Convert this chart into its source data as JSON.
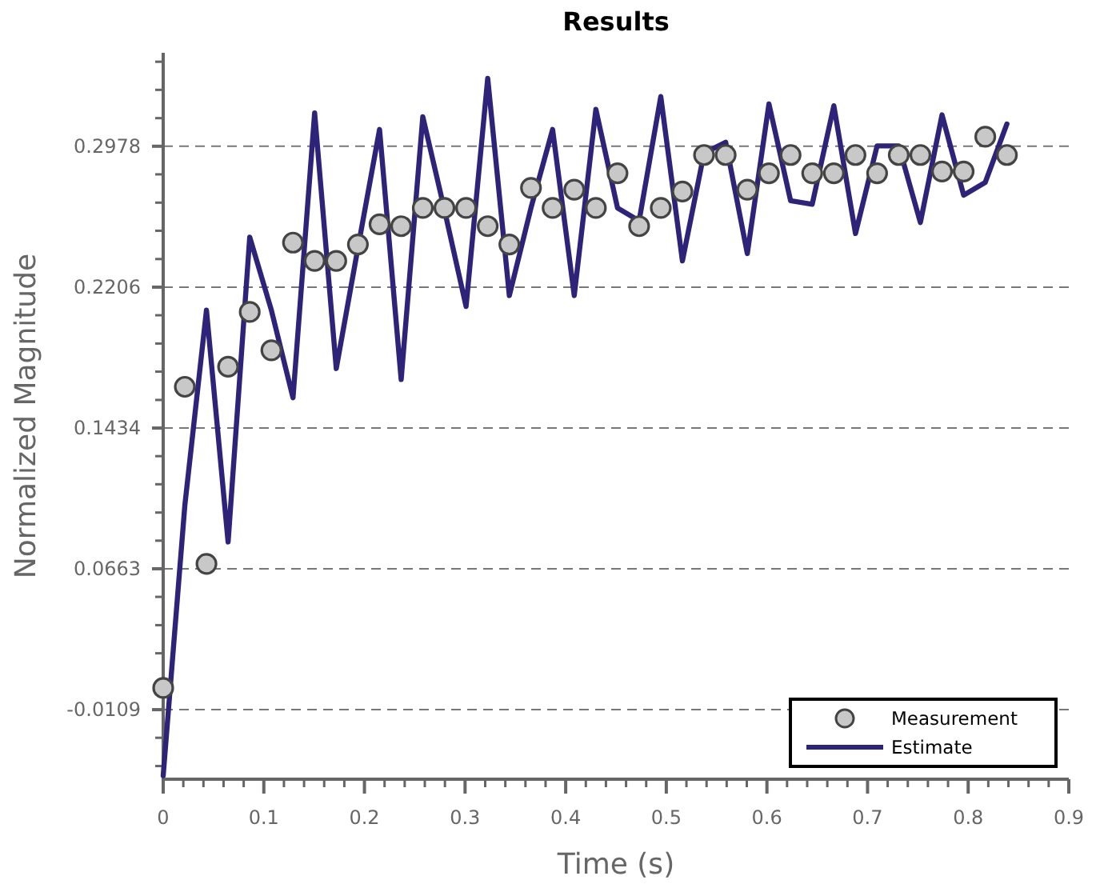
{
  "chart_data": {
    "type": "line",
    "title": "Results",
    "xlabel": "Time (s)",
    "ylabel": "Normalized Magnitude",
    "x": [
      0,
      0.0215,
      0.043,
      0.0645,
      0.086,
      0.1075,
      0.129,
      0.1505,
      0.172,
      0.1935,
      0.215,
      0.2365,
      0.258,
      0.2795,
      0.301,
      0.3225,
      0.344,
      0.3655,
      0.387,
      0.4085,
      0.43,
      0.4515,
      0.473,
      0.4945,
      0.516,
      0.5375,
      0.559,
      0.5805,
      0.602,
      0.6235,
      0.645,
      0.6665,
      0.688,
      0.7095,
      0.731,
      0.7525,
      0.774,
      0.7955,
      0.817,
      0.8385
    ],
    "series": [
      {
        "name": "Measurement",
        "type": "scatter",
        "marker": "circle",
        "color": "#c8c8c8",
        "values": [
          0.001,
          0.166,
          0.069,
          0.177,
          0.207,
          0.186,
          0.245,
          0.235,
          0.235,
          0.244,
          0.255,
          0.254,
          0.264,
          0.264,
          0.264,
          0.254,
          0.244,
          0.275,
          0.264,
          0.274,
          0.264,
          0.283,
          0.254,
          0.264,
          0.273,
          0.293,
          0.293,
          0.274,
          0.283,
          0.293,
          0.283,
          0.283,
          0.293,
          0.283,
          0.293,
          0.293,
          0.284,
          0.284,
          0.303,
          0.293
        ]
      },
      {
        "name": "Estimate",
        "marker": "none",
        "line_style": "solid",
        "color": "#2d2479",
        "values": [
          -0.047,
          0.101,
          0.208,
          0.081,
          0.248,
          0.208,
          0.16,
          0.316,
          0.176,
          0.242,
          0.307,
          0.17,
          0.314,
          0.263,
          0.21,
          0.335,
          0.216,
          0.264,
          0.307,
          0.216,
          0.318,
          0.264,
          0.257,
          0.325,
          0.235,
          0.294,
          0.3,
          0.239,
          0.321,
          0.268,
          0.266,
          0.32,
          0.25,
          0.298,
          0.298,
          0.256,
          0.315,
          0.271,
          0.278,
          0.31
        ]
      }
    ],
    "xlim": [
      0,
      0.9
    ],
    "xticks": [
      0,
      {
        "value": 0.02,
        "label": null
      },
      {
        "value": 0.04,
        "label": null
      },
      {
        "value": 0.06,
        "label": null
      },
      {
        "value": 0.08,
        "label": null
      },
      0.1,
      {
        "value": 0.12,
        "label": null
      },
      {
        "value": 0.14,
        "label": null
      },
      {
        "value": 0.16,
        "label": null
      },
      {
        "value": 0.18,
        "label": null
      },
      0.2,
      {
        "value": 0.22,
        "label": null
      },
      {
        "value": 0.24,
        "label": null
      },
      {
        "value": 0.26,
        "label": null
      },
      {
        "value": 0.28,
        "label": null
      },
      0.3,
      {
        "value": 0.32,
        "label": null
      },
      {
        "value": 0.34,
        "label": null
      },
      {
        "value": 0.36,
        "label": null
      },
      {
        "value": 0.38,
        "label": null
      },
      0.4,
      {
        "value": 0.42,
        "label": null
      },
      {
        "value": 0.44,
        "label": null
      },
      {
        "value": 0.46,
        "label": null
      },
      {
        "value": 0.48,
        "label": null
      },
      0.5,
      {
        "value": 0.52,
        "label": null
      },
      {
        "value": 0.54,
        "label": null
      },
      {
        "value": 0.56,
        "label": null
      },
      {
        "value": 0.58,
        "label": null
      },
      0.6,
      {
        "value": 0.62,
        "label": null
      },
      {
        "value": 0.64,
        "label": null
      },
      {
        "value": 0.66,
        "label": null
      },
      {
        "value": 0.68,
        "label": null
      },
      0.7,
      {
        "value": 0.72,
        "label": null
      },
      {
        "value": 0.74,
        "label": null
      },
      {
        "value": 0.76,
        "label": null
      },
      {
        "value": 0.78,
        "label": null
      },
      0.8,
      {
        "value": 0.82,
        "label": null
      },
      {
        "value": 0.84,
        "label": null
      },
      {
        "value": 0.86,
        "label": null
      },
      {
        "value": 0.88,
        "label": null
      },
      0.9
    ],
    "ylim": [
      -0.049,
      0.349
    ],
    "yticks": [
      {
        "value": -0.0418,
        "label": null
      },
      {
        "value": -0.0263,
        "label": null
      },
      -0.0109,
      {
        "value": 0.0045,
        "label": null
      },
      {
        "value": 0.02,
        "label": null
      },
      {
        "value": 0.0354,
        "label": null
      },
      {
        "value": 0.0509,
        "label": null
      },
      0.0663,
      {
        "value": 0.0817,
        "label": null
      },
      {
        "value": 0.0971,
        "label": null
      },
      {
        "value": 0.1126,
        "label": null
      },
      {
        "value": 0.128,
        "label": null
      },
      0.1434,
      {
        "value": 0.1588,
        "label": null
      },
      {
        "value": 0.1743,
        "label": null
      },
      {
        "value": 0.1897,
        "label": null
      },
      {
        "value": 0.2052,
        "label": null
      },
      0.2206,
      {
        "value": 0.236,
        "label": null
      },
      {
        "value": 0.2515,
        "label": null
      },
      {
        "value": 0.2669,
        "label": null
      },
      {
        "value": 0.2824,
        "label": null
      },
      0.2978,
      {
        "value": 0.3132,
        "label": null
      },
      {
        "value": 0.3287,
        "label": null
      },
      {
        "value": 0.3441,
        "label": null
      }
    ],
    "grid": "y",
    "legend": "bottom right"
  }
}
